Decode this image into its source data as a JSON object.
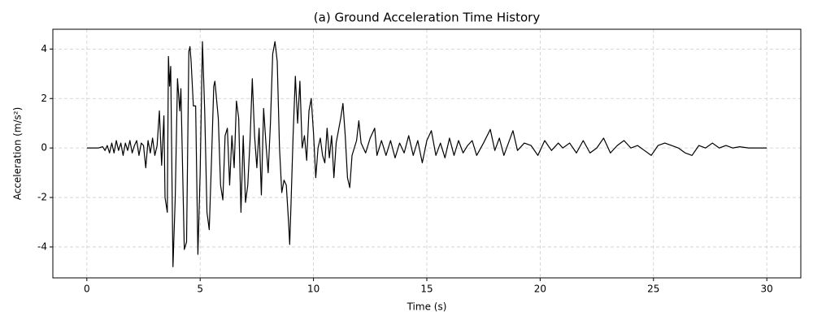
{
  "chart_data": {
    "type": "line",
    "title": "(a) Ground Acceleration Time History",
    "x_label": "Time (s)",
    "y_label": "Acceleration (m/s²)",
    "color": "#000000",
    "grid": true,
    "xlim": [
      -1.5,
      31.5
    ],
    "ylim": [
      -5.25,
      4.8
    ],
    "xticks": [
      0,
      5,
      10,
      15,
      20,
      25,
      30
    ],
    "yticks": [
      -4,
      -2,
      0,
      2,
      4
    ],
    "x": [
      0,
      0.5,
      0.7,
      0.8,
      0.9,
      1.0,
      1.1,
      1.2,
      1.3,
      1.4,
      1.5,
      1.6,
      1.7,
      1.8,
      1.9,
      2.0,
      2.1,
      2.2,
      2.3,
      2.4,
      2.5,
      2.6,
      2.7,
      2.8,
      2.9,
      3.0,
      3.1,
      3.2,
      3.3,
      3.4,
      3.45,
      3.55,
      3.6,
      3.65,
      3.7,
      3.8,
      3.9,
      4.0,
      4.1,
      4.15,
      4.3,
      4.4,
      4.5,
      4.55,
      4.6,
      4.7,
      4.8,
      4.9,
      5.0,
      5.1,
      5.2,
      5.3,
      5.4,
      5.5,
      5.6,
      5.65,
      5.8,
      5.9,
      6.0,
      6.1,
      6.2,
      6.3,
      6.4,
      6.5,
      6.6,
      6.7,
      6.8,
      6.9,
      7.0,
      7.1,
      7.2,
      7.3,
      7.4,
      7.5,
      7.6,
      7.7,
      7.8,
      7.9,
      8.0,
      8.1,
      8.2,
      8.3,
      8.4,
      8.5,
      8.6,
      8.7,
      8.8,
      8.9,
      8.95,
      9.0,
      9.1,
      9.2,
      9.3,
      9.4,
      9.5,
      9.6,
      9.7,
      9.8,
      9.9,
      10.0,
      10.1,
      10.2,
      10.3,
      10.4,
      10.5,
      10.6,
      10.7,
      10.8,
      10.9,
      11.0,
      11.2,
      11.3,
      11.4,
      11.5,
      11.6,
      11.7,
      11.9,
      12.0,
      12.1,
      12.3,
      12.5,
      12.7,
      12.8,
      13.0,
      13.2,
      13.4,
      13.6,
      13.8,
      14.0,
      14.2,
      14.4,
      14.6,
      14.8,
      15.0,
      15.2,
      15.4,
      15.6,
      15.8,
      16.0,
      16.2,
      16.4,
      16.6,
      16.8,
      17.0,
      17.2,
      17.5,
      17.8,
      18.0,
      18.2,
      18.4,
      18.8,
      19.0,
      19.3,
      19.6,
      19.9,
      20.2,
      20.5,
      20.8,
      21.0,
      21.3,
      21.6,
      21.9,
      22.2,
      22.5,
      22.8,
      23.1,
      23.4,
      23.7,
      24.0,
      24.3,
      24.6,
      24.9,
      25.2,
      25.5,
      25.8,
      26.1,
      26.4,
      26.7,
      27.0,
      27.3,
      27.6,
      27.9,
      28.2,
      28.5,
      28.8,
      29.2,
      30
    ],
    "values": [
      0,
      0,
      0.05,
      -0.1,
      0.1,
      -0.2,
      0.2,
      -0.2,
      0.3,
      -0.1,
      0.2,
      -0.3,
      0.2,
      -0.1,
      0.3,
      -0.2,
      0.1,
      0.3,
      -0.3,
      0.2,
      0.1,
      -0.8,
      0.3,
      -0.2,
      0.4,
      -0.3,
      0.1,
      1.5,
      -0.7,
      1.3,
      -2.0,
      -2.6,
      3.7,
      2.5,
      3.3,
      -4.8,
      -2,
      2.8,
      1.5,
      2.4,
      -4.1,
      -3.8,
      3.9,
      4.1,
      3.5,
      1.7,
      1.7,
      -4.3,
      -1,
      4.3,
      1.5,
      -2.6,
      -3.3,
      -0.5,
      2.5,
      2.7,
      1.2,
      -1.5,
      -2.1,
      0.5,
      0.8,
      -1.5,
      0.5,
      -0.8,
      1.9,
      1.2,
      -2.6,
      0.5,
      -2.2,
      -1.5,
      0.3,
      2.8,
      0.5,
      -0.8,
      0.8,
      -1.9,
      1.6,
      0.2,
      -1,
      1,
      3.8,
      4.3,
      3.5,
      0,
      -1.8,
      -1.3,
      -1.5,
      -3.0,
      -3.9,
      -2.5,
      0.5,
      2.9,
      1.0,
      2.7,
      0,
      0.5,
      -0.5,
      1.5,
      2.0,
      0.6,
      -1.2,
      0,
      0.4,
      -0.3,
      -0.6,
      0.8,
      -0.4,
      0.5,
      -1.2,
      0.2,
      1.2,
      1.8,
      0.5,
      -1.2,
      -1.6,
      -0.3,
      0.3,
      1.1,
      0.2,
      -0.2,
      0.4,
      0.8,
      -0.3,
      0.3,
      -0.3,
      0.3,
      -0.4,
      0.2,
      -0.2,
      0.5,
      -0.3,
      0.3,
      -0.6,
      0.3,
      0.7,
      -0.3,
      0.2,
      -0.4,
      0.4,
      -0.3,
      0.3,
      -0.2,
      0.1,
      0.3,
      -0.3,
      0.2,
      0.75,
      -0.1,
      0.4,
      -0.3,
      0.7,
      -0.1,
      0.2,
      0.1,
      -0.3,
      0.3,
      -0.1,
      0.2,
      0,
      0.2,
      -0.2,
      0.3,
      -0.2,
      0,
      0.4,
      -0.2,
      0.1,
      0.3,
      0,
      0.1,
      -0.1,
      -0.3,
      0.1,
      0.2,
      0.1,
      0,
      -0.2,
      -0.3,
      0.1,
      0,
      0.2,
      0,
      0.1,
      0,
      0.05,
      0,
      0
    ]
  }
}
